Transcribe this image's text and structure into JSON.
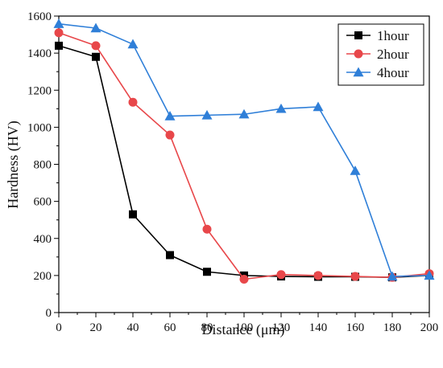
{
  "chart_data": {
    "type": "line",
    "title": "",
    "xlabel": "Distance (μm)",
    "ylabel": "Hardness (HV)",
    "xlim": [
      0,
      200
    ],
    "ylim": [
      0,
      1600
    ],
    "x_ticks": [
      0,
      20,
      40,
      60,
      80,
      100,
      120,
      140,
      160,
      180,
      200
    ],
    "y_ticks": [
      0,
      200,
      400,
      600,
      800,
      1000,
      1200,
      1400,
      1600
    ],
    "grid": false,
    "legend_position": "top-right",
    "series": [
      {
        "name": "1hour",
        "color": "#000000",
        "marker": "square",
        "points": [
          [
            0,
            1440
          ],
          [
            20,
            1380
          ],
          [
            40,
            530
          ],
          [
            60,
            310
          ],
          [
            80,
            220
          ],
          [
            100,
            200
          ],
          [
            120,
            195
          ],
          [
            140,
            193
          ],
          [
            160,
            193
          ],
          [
            180,
            190
          ],
          [
            200,
            200
          ]
        ]
      },
      {
        "name": "2hour",
        "color": "#e8474a",
        "marker": "circle",
        "points": [
          [
            0,
            1510
          ],
          [
            20,
            1440
          ],
          [
            40,
            1135
          ],
          [
            60,
            958
          ],
          [
            80,
            450
          ],
          [
            100,
            180
          ],
          [
            120,
            205
          ],
          [
            140,
            200
          ],
          [
            160,
            195
          ],
          [
            180,
            190
          ],
          [
            200,
            210
          ]
        ]
      },
      {
        "name": "4hour",
        "color": "#2f7fd8",
        "marker": "triangle",
        "points": [
          [
            0,
            1558
          ],
          [
            20,
            1535
          ],
          [
            40,
            1448
          ],
          [
            60,
            1060
          ],
          [
            80,
            1065
          ],
          [
            100,
            1070
          ],
          [
            120,
            1100
          ],
          [
            140,
            1110
          ],
          [
            160,
            765
          ],
          [
            180,
            195
          ],
          [
            200,
            200
          ]
        ]
      }
    ]
  }
}
